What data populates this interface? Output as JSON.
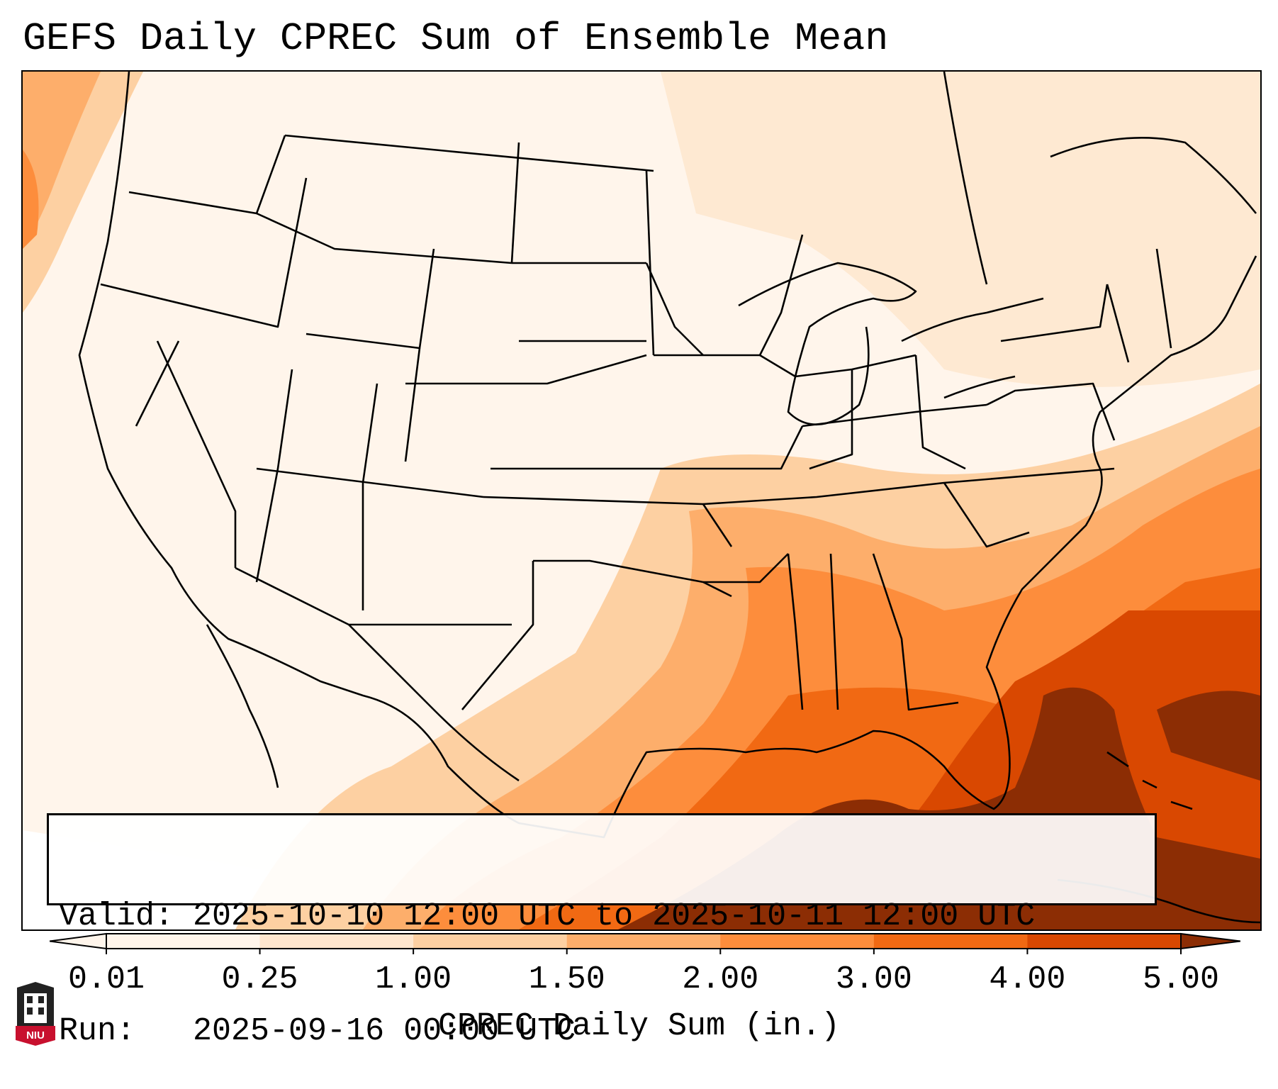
{
  "title": "GEFS Daily CPREC Sum of Ensemble Mean",
  "info": {
    "valid_line": "Valid: 2025-10-10 12:00 UTC to 2025-10-11 12:00 UTC",
    "run_line": "Run:   2025-09-16 00:00 UTC"
  },
  "colorbar": {
    "label": "CPREC Daily Sum (in.)",
    "ticks": [
      "0.01",
      "0.25",
      "1.00",
      "1.50",
      "2.00",
      "3.00",
      "4.00",
      "5.00"
    ],
    "colors": [
      "#fff5eb",
      "#fee6ce",
      "#fdd0a2",
      "#fdae6b",
      "#fd8d3c",
      "#f16913",
      "#d94801",
      "#8c2d04"
    ],
    "extend": "both"
  },
  "logo": {
    "text": "NIU",
    "colors": {
      "red": "#c8102e",
      "dark": "#222222"
    }
  },
  "map": {
    "region": "CONUS",
    "field": "CPREC daily sum",
    "units": "in.",
    "heaviest_area": "Gulf of Mexico / Florida / western Atlantic"
  }
}
